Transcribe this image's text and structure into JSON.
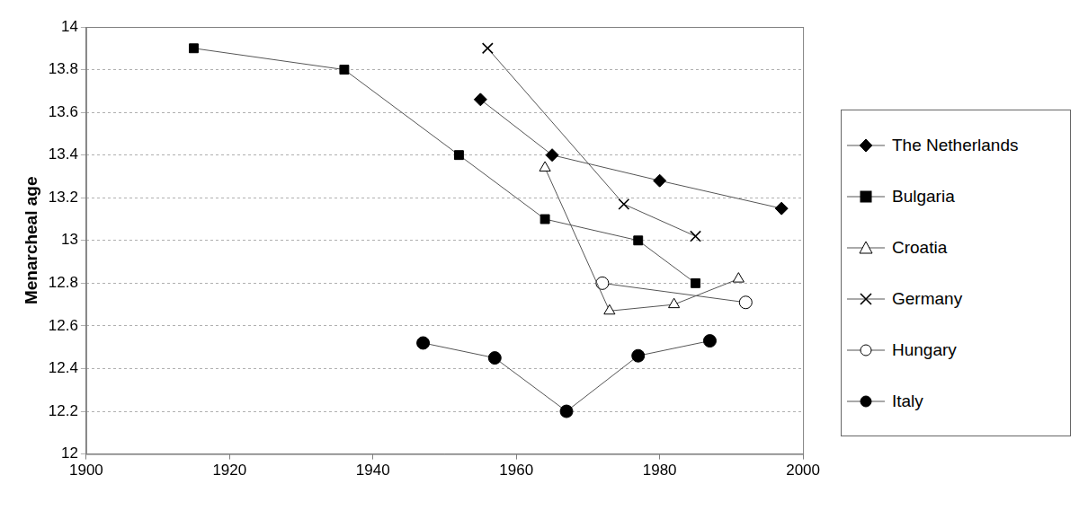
{
  "chart_data": {
    "type": "line",
    "y_label": "Menarcheal age",
    "xlim": [
      1900,
      2000
    ],
    "xticks": [
      1900,
      1920,
      1940,
      1960,
      1980,
      2000
    ],
    "ylim": [
      12,
      14
    ],
    "yticks": [
      12,
      12.2,
      12.4,
      12.6,
      12.8,
      13,
      13.2,
      13.4,
      13.6,
      13.8,
      14
    ],
    "grid": true,
    "legend": "right",
    "series": [
      {
        "name": "The Netherlands",
        "color": "#000000",
        "marker": "diamond",
        "x": [
          1955,
          1965,
          1980,
          1997
        ],
        "values": [
          13.66,
          13.4,
          13.28,
          13.15
        ]
      },
      {
        "name": "Bulgaria",
        "color": "#000000",
        "marker": "square",
        "x": [
          1915,
          1936,
          1952,
          1964,
          1977,
          1985
        ],
        "values": [
          13.9,
          13.8,
          13.4,
          13.1,
          13.0,
          12.8
        ]
      },
      {
        "name": "Croatia",
        "color": "#000000",
        "marker": "triangle-open",
        "x": [
          1964,
          1973,
          1982,
          1991
        ],
        "values": [
          13.34,
          12.67,
          12.7,
          12.82
        ]
      },
      {
        "name": "Germany",
        "color": "#000000",
        "marker": "cross",
        "x": [
          1956,
          1975,
          1985
        ],
        "values": [
          13.9,
          13.17,
          13.02
        ]
      },
      {
        "name": "Hungary",
        "color": "#000000",
        "marker": "circle-open",
        "x": [
          1972,
          1992
        ],
        "values": [
          12.8,
          12.71
        ]
      },
      {
        "name": "Italy",
        "color": "#000000",
        "marker": "circle",
        "x": [
          1947,
          1957,
          1967,
          1977,
          1987
        ],
        "values": [
          12.52,
          12.45,
          12.2,
          12.46,
          12.53
        ]
      }
    ]
  }
}
